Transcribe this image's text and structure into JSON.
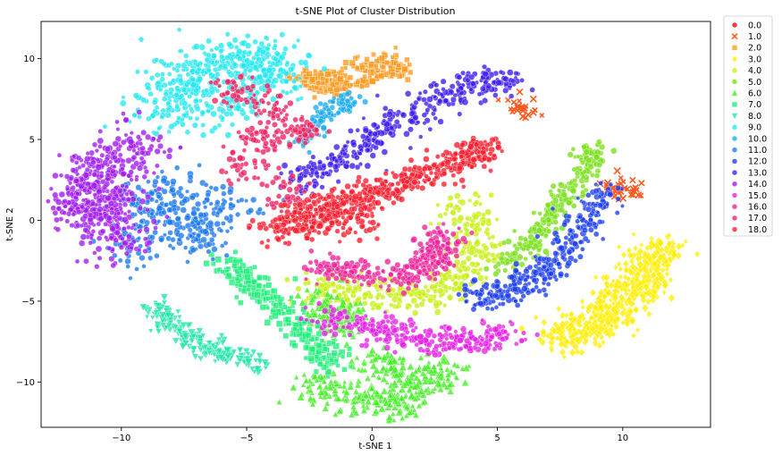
{
  "chart_data": {
    "type": "scatter",
    "title": "t-SNE Plot of Cluster Distribution",
    "xlabel": "t-SNE 1",
    "ylabel": "t-SNE 2",
    "xlim": [
      -13.2,
      13.5
    ],
    "ylim": [
      -12.8,
      12.3
    ],
    "xticks": [
      -10,
      -5,
      0,
      5,
      10
    ],
    "yticks": [
      -10,
      -5,
      0,
      5,
      10
    ],
    "grid": false,
    "legend_position": "outside-top-right",
    "series": [
      {
        "name": "0.0",
        "marker": "circle",
        "color": "#ff0000",
        "shape": "blob",
        "points": [
          [
            1,
            1
          ],
          [
            4,
            4
          ]
        ],
        "spread": 0.45,
        "n": 0
      },
      {
        "name": "1.0",
        "marker": "x",
        "color": "#ff5a1f",
        "shape": "blob",
        "points": [
          [
            6,
            7
          ],
          [
            10,
            2
          ]
        ],
        "spread": 0.4,
        "n": 60
      },
      {
        "name": "2.0",
        "marker": "square",
        "color": "#ff9a1f",
        "shape": "curve",
        "points": [
          [
            -3,
            9
          ],
          [
            -2,
            8.5
          ],
          [
            -0.5,
            9.8
          ],
          [
            1,
            9.8
          ],
          [
            1,
            9.2
          ],
          [
            -0.5,
            8.7
          ],
          [
            -1.8,
            8.0
          ],
          [
            -2.2,
            9.0
          ]
        ],
        "spread": 0.28,
        "n": 240
      },
      {
        "name": "3.0",
        "marker": "diamond",
        "color": "#ffee00",
        "shape": "blob",
        "points": [
          [
            7.8,
            -7.2
          ],
          [
            9.5,
            -6
          ],
          [
            10.8,
            -4
          ],
          [
            11.6,
            -2
          ],
          [
            9.8,
            -4.5
          ],
          [
            8.6,
            -6.5
          ],
          [
            11,
            -3
          ]
        ],
        "spread": 0.55,
        "n": 520
      },
      {
        "name": "4.0",
        "marker": "circle",
        "color": "#c8f013",
        "shape": "curve",
        "points": [
          [
            3.5,
            1
          ],
          [
            4.3,
            -1
          ],
          [
            3.8,
            -3
          ],
          [
            2.8,
            -4.5
          ],
          [
            1,
            -4.5
          ],
          [
            -1,
            -4.3
          ],
          [
            -2.5,
            -4.2
          ]
        ],
        "spread": 0.55,
        "n": 380
      },
      {
        "name": "5.0",
        "marker": "circle",
        "color": "#7ae01a",
        "shape": "curve",
        "points": [
          [
            5.2,
            -3
          ],
          [
            6.5,
            -1.2
          ],
          [
            7.5,
            1
          ],
          [
            8.5,
            3
          ],
          [
            8.8,
            4.5
          ]
        ],
        "spread": 0.35,
        "n": 260
      },
      {
        "name": "6.0",
        "marker": "triangle-up",
        "color": "#3ef01c",
        "shape": "blob",
        "points": [
          [
            -2,
            -5.5
          ],
          [
            -1.2,
            -6.2
          ],
          [
            0.3,
            -9
          ],
          [
            1.5,
            -10
          ],
          [
            2.5,
            -9.5
          ],
          [
            -0.5,
            -11
          ],
          [
            1,
            -11.3
          ],
          [
            -2,
            -10.3
          ]
        ],
        "spread": 0.55,
        "n": 520
      },
      {
        "name": "7.0",
        "marker": "square",
        "color": "#1ef07a",
        "shape": "curve",
        "points": [
          [
            -5.7,
            -2.5
          ],
          [
            -5,
            -3.8
          ],
          [
            -3.8,
            -5
          ],
          [
            -3,
            -6.5
          ],
          [
            -2.2,
            -8
          ],
          [
            -1.5,
            -9
          ]
        ],
        "spread": 0.35,
        "n": 260
      },
      {
        "name": "8.0",
        "marker": "triangle-down",
        "color": "#1ee6a8",
        "shape": "curve",
        "points": [
          [
            -8.5,
            -5
          ],
          [
            -8.2,
            -6.5
          ],
          [
            -7,
            -7.5
          ],
          [
            -6,
            -8.2
          ],
          [
            -4.5,
            -9
          ]
        ],
        "spread": 0.3,
        "n": 220
      },
      {
        "name": "9.0",
        "marker": "circle",
        "color": "#22e8f0",
        "shape": "blob",
        "points": [
          [
            -7.5,
            8.5
          ],
          [
            -6.5,
            9.5
          ],
          [
            -5,
            10
          ],
          [
            -4,
            9.7
          ],
          [
            -8,
            7
          ],
          [
            -6,
            7.2
          ],
          [
            -4.5,
            8.5
          ]
        ],
        "spread": 0.8,
        "n": 520
      },
      {
        "name": "10.0",
        "marker": "circle",
        "color": "#1aaaf0",
        "shape": "curve",
        "points": [
          [
            -3,
            4.5
          ],
          [
            -2.3,
            6
          ],
          [
            -1.3,
            7
          ],
          [
            -0.8,
            7.6
          ]
        ],
        "spread": 0.25,
        "n": 100
      },
      {
        "name": "11.0",
        "marker": "circle",
        "color": "#1a78f0",
        "shape": "blob",
        "points": [
          [
            -9,
            1
          ],
          [
            -8,
            1.5
          ],
          [
            -7,
            0
          ],
          [
            -6,
            1
          ],
          [
            -9.5,
            -1.5
          ],
          [
            -7,
            -1
          ]
        ],
        "spread": 0.7,
        "n": 320
      },
      {
        "name": "12.0",
        "marker": "circle",
        "color": "#1a3cf0",
        "shape": "curve",
        "points": [
          [
            4,
            -4.8
          ],
          [
            5.5,
            -4.5
          ],
          [
            6.5,
            -3.5
          ],
          [
            7.5,
            -2
          ],
          [
            8.5,
            0
          ],
          [
            9.3,
            2
          ]
        ],
        "spread": 0.45,
        "n": 320
      },
      {
        "name": "13.0",
        "marker": "circle",
        "color": "#3c1af0",
        "shape": "curve",
        "points": [
          [
            -3,
            2.5
          ],
          [
            -1.5,
            3.5
          ],
          [
            0,
            5
          ],
          [
            2,
            7
          ],
          [
            4,
            8.5
          ],
          [
            5.5,
            8.5
          ]
        ],
        "spread": 0.45,
        "n": 340
      },
      {
        "name": "14.0",
        "marker": "circle",
        "color": "#a01af0",
        "shape": "blob",
        "points": [
          [
            -11,
            3
          ],
          [
            -10.5,
            1.5
          ],
          [
            -11.3,
            0.5
          ],
          [
            -10,
            -1
          ],
          [
            -9.5,
            4.5
          ],
          [
            -11.5,
            1.5
          ]
        ],
        "spread": 0.75,
        "n": 520
      },
      {
        "name": "15.0",
        "marker": "circle",
        "color": "#e620e6",
        "shape": "curve",
        "points": [
          [
            -2,
            -6
          ],
          [
            0,
            -6.5
          ],
          [
            2,
            -7.5
          ],
          [
            4,
            -7.5
          ],
          [
            5.5,
            -7
          ]
        ],
        "spread": 0.45,
        "n": 300
      },
      {
        "name": "16.0",
        "marker": "circle",
        "color": "#f0209a",
        "shape": "curve",
        "points": [
          [
            -2.5,
            -3
          ],
          [
            -1,
            -3.2
          ],
          [
            1,
            -3.5
          ],
          [
            2.5,
            -2.5
          ],
          [
            3,
            -1
          ],
          [
            1.5,
            -4
          ]
        ],
        "spread": 0.4,
        "n": 300
      },
      {
        "name": "17.0",
        "marker": "circle",
        "color": "#f02060",
        "shape": "blob",
        "points": [
          [
            -4,
            7
          ],
          [
            -4.5,
            5
          ],
          [
            -5,
            3
          ],
          [
            -3.5,
            2
          ],
          [
            -3,
            5.5
          ],
          [
            -5.5,
            8
          ]
        ],
        "spread": 0.5,
        "n": 240
      },
      {
        "name": "18.0",
        "marker": "circle",
        "color": "#ff1a2a",
        "shape": "curve",
        "points": [
          [
            -4,
            -1
          ],
          [
            -2.5,
            0.5
          ],
          [
            -0.5,
            1.5
          ],
          [
            1.5,
            2.5
          ],
          [
            3.5,
            3.5
          ],
          [
            4.5,
            4.5
          ],
          [
            -3,
            -0.2
          ],
          [
            0,
            0
          ]
        ],
        "spread": 0.45,
        "n": 620
      }
    ]
  }
}
